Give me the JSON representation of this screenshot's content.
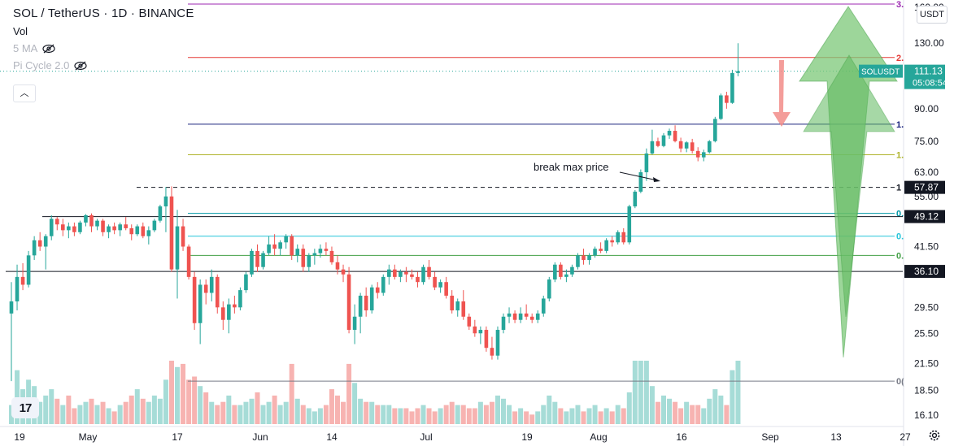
{
  "header": {
    "title": "SOL / TetherUS · 1D · BINANCE",
    "vol_label": "Vol",
    "indicator_1": "5 MA",
    "indicator_2": "Pi Cycle 2.0",
    "currency": "USDT"
  },
  "icons": {
    "eye_hidden": "eye-slash-icon",
    "collapse": "chevron-up-icon",
    "logo": "tradingview-logo-icon",
    "settings": "gear-icon"
  },
  "colors": {
    "up": "#26a69a",
    "down": "#ef5350",
    "vol_up": "#a6dcd7",
    "vol_down": "#f7b3b1",
    "arrow_green": "#6cc36a",
    "arrow_red": "#f28c88"
  },
  "chart_data": {
    "type": "candlestick",
    "symbol": "SOL / TetherUS",
    "interval": "1D",
    "exchange": "BINANCE",
    "y_scale": "log",
    "y_range": [
      15.6,
      162
    ],
    "y_ticks": [
      "160.00",
      "130.00",
      "111.13",
      "90.00",
      "75.00",
      "63.00",
      "57.87",
      "55.00",
      "49.12",
      "41.50",
      "36.10",
      "29.50",
      "25.50",
      "21.50",
      "18.50",
      "16.10"
    ],
    "x_ticks": [
      "19",
      "May",
      "17",
      "Jun",
      "14",
      "Jul",
      "19",
      "Aug",
      "16",
      "Sep",
      "13",
      "27"
    ],
    "price_label": {
      "name": "SOLUSDT",
      "price": "111.13",
      "countdown": "05:08:54"
    },
    "level_labels": [
      {
        "value": 57.87,
        "text": "57.87"
      },
      {
        "value": 49.12,
        "text": "49.12"
      },
      {
        "value": 36.1,
        "text": "36.10"
      }
    ],
    "fib_levels": [
      {
        "label": "3.",
        "value": 162,
        "color": "#9c27b0"
      },
      {
        "label": "2.",
        "value": 120,
        "color": "#e53935"
      },
      {
        "label": "1.",
        "value": 82.5,
        "color": "#1a237e"
      },
      {
        "label": "1.",
        "value": 69.5,
        "color": "#afb42b"
      },
      {
        "label": "1",
        "value": 57.87,
        "color": "#131722"
      },
      {
        "label": "0.",
        "value": 50.0,
        "color": "#0097a7"
      },
      {
        "label": "0.",
        "value": 44.0,
        "color": "#26c6da"
      },
      {
        "label": "0.",
        "value": 39.5,
        "color": "#43a047"
      },
      {
        "label": "0(",
        "value": 19.5,
        "color": "#787b86"
      }
    ],
    "annotation": "break max price",
    "candles_ohlc": [
      [
        28.5,
        34.0,
        19.5,
        30.5
      ],
      [
        30.5,
        37.5,
        29.0,
        35.0
      ],
      [
        35.0,
        37.8,
        32.5,
        33.5
      ],
      [
        33.5,
        40.5,
        33.0,
        39.5
      ],
      [
        39.5,
        44.0,
        38.5,
        43.0
      ],
      [
        43.0,
        45.0,
        40.5,
        41.5
      ],
      [
        41.5,
        44.5,
        36.5,
        44.0
      ],
      [
        44.0,
        49.5,
        43.0,
        48.5
      ],
      [
        48.5,
        49.0,
        45.5,
        47.0
      ],
      [
        47.0,
        48.5,
        44.0,
        45.5
      ],
      [
        45.5,
        47.5,
        43.5,
        46.5
      ],
      [
        46.5,
        47.5,
        44.0,
        45.0
      ],
      [
        45.0,
        48.0,
        44.5,
        47.5
      ],
      [
        47.5,
        49.8,
        46.5,
        49.5
      ],
      [
        49.5,
        50.0,
        45.0,
        46.5
      ],
      [
        46.5,
        48.5,
        45.5,
        48.0
      ],
      [
        48.0,
        48.5,
        44.0,
        45.0
      ],
      [
        45.0,
        47.0,
        43.5,
        46.5
      ],
      [
        46.5,
        47.5,
        44.5,
        45.5
      ],
      [
        45.5,
        47.5,
        44.0,
        47.0
      ],
      [
        47.0,
        49.0,
        45.5,
        46.0
      ],
      [
        46.0,
        47.0,
        43.0,
        44.5
      ],
      [
        44.5,
        47.0,
        44.0,
        46.5
      ],
      [
        46.5,
        47.5,
        43.5,
        44.0
      ],
      [
        44.0,
        46.5,
        42.0,
        45.5
      ],
      [
        45.5,
        48.5,
        45.0,
        48.0
      ],
      [
        48.0,
        52.5,
        47.5,
        52.0
      ],
      [
        52.0,
        58.0,
        45.0,
        55.0
      ],
      [
        55.0,
        58.2,
        36.0,
        36.5
      ],
      [
        36.5,
        51.0,
        31.0,
        46.5
      ],
      [
        46.5,
        48.5,
        40.5,
        41.5
      ],
      [
        41.5,
        42.0,
        34.5,
        35.0
      ],
      [
        35.0,
        36.0,
        26.0,
        27.0
      ],
      [
        27.0,
        34.5,
        24.0,
        33.5
      ],
      [
        33.5,
        34.5,
        30.0,
        32.0
      ],
      [
        32.0,
        36.5,
        30.5,
        35.0
      ],
      [
        35.0,
        35.5,
        28.5,
        29.5
      ],
      [
        29.5,
        30.5,
        26.0,
        27.5
      ],
      [
        27.5,
        31.0,
        25.5,
        30.0
      ],
      [
        30.0,
        31.5,
        28.5,
        29.5
      ],
      [
        29.5,
        33.0,
        29.0,
        32.5
      ],
      [
        32.5,
        36.0,
        32.0,
        35.5
      ],
      [
        35.5,
        41.0,
        35.0,
        40.5
      ],
      [
        40.5,
        42.0,
        36.0,
        37.0
      ],
      [
        37.0,
        40.5,
        36.5,
        40.0
      ],
      [
        40.0,
        44.0,
        39.5,
        42.0
      ],
      [
        42.0,
        44.5,
        39.5,
        41.0
      ],
      [
        41.0,
        43.0,
        39.5,
        42.5
      ],
      [
        42.5,
        44.5,
        41.0,
        44.0
      ],
      [
        44.0,
        44.5,
        38.5,
        39.5
      ],
      [
        39.5,
        42.0,
        38.0,
        41.0
      ],
      [
        41.0,
        42.0,
        36.0,
        37.0
      ],
      [
        37.0,
        40.0,
        36.0,
        39.5
      ],
      [
        39.5,
        41.0,
        37.5,
        40.0
      ],
      [
        40.0,
        42.0,
        39.0,
        41.0
      ],
      [
        41.0,
        42.5,
        39.5,
        40.5
      ],
      [
        40.5,
        41.5,
        37.5,
        38.0
      ],
      [
        38.0,
        39.5,
        35.5,
        36.5
      ],
      [
        36.5,
        37.5,
        34.0,
        35.5
      ],
      [
        35.5,
        37.0,
        25.5,
        26.0
      ],
      [
        26.0,
        30.0,
        24.0,
        28.0
      ],
      [
        28.0,
        32.0,
        25.5,
        31.5
      ],
      [
        31.5,
        33.0,
        28.0,
        29.0
      ],
      [
        29.0,
        33.5,
        28.5,
        33.0
      ],
      [
        33.0,
        34.0,
        31.0,
        32.0
      ],
      [
        32.0,
        35.5,
        31.5,
        35.0
      ],
      [
        35.0,
        37.5,
        33.5,
        36.5
      ],
      [
        36.5,
        37.5,
        34.5,
        35.0
      ],
      [
        35.0,
        36.5,
        34.0,
        36.0
      ],
      [
        36.0,
        37.0,
        34.0,
        35.5
      ],
      [
        35.5,
        36.5,
        34.5,
        35.0
      ],
      [
        35.0,
        36.0,
        33.0,
        34.0
      ],
      [
        34.0,
        37.5,
        33.5,
        37.0
      ],
      [
        37.0,
        38.5,
        34.5,
        35.0
      ],
      [
        35.0,
        36.0,
        32.5,
        33.0
      ],
      [
        33.0,
        34.5,
        32.0,
        34.0
      ],
      [
        34.0,
        35.0,
        31.0,
        31.5
      ],
      [
        31.5,
        32.5,
        28.5,
        29.0
      ],
      [
        29.0,
        31.0,
        28.0,
        30.5
      ],
      [
        30.5,
        32.5,
        27.5,
        28.0
      ],
      [
        28.0,
        28.5,
        26.0,
        26.5
      ],
      [
        26.5,
        27.5,
        25.0,
        25.5
      ],
      [
        25.5,
        26.5,
        24.0,
        26.0
      ],
      [
        26.0,
        26.5,
        23.0,
        23.5
      ],
      [
        23.5,
        25.0,
        22.0,
        22.5
      ],
      [
        22.5,
        26.5,
        22.0,
        26.0
      ],
      [
        26.0,
        28.5,
        25.5,
        28.0
      ],
      [
        28.0,
        29.5,
        27.0,
        28.5
      ],
      [
        28.5,
        29.0,
        27.0,
        27.5
      ],
      [
        27.5,
        29.5,
        27.0,
        28.5
      ],
      [
        28.5,
        30.0,
        27.5,
        28.0
      ],
      [
        28.0,
        28.5,
        27.0,
        27.5
      ],
      [
        27.5,
        29.0,
        27.0,
        28.5
      ],
      [
        28.5,
        31.5,
        28.0,
        31.0
      ],
      [
        31.0,
        35.0,
        30.5,
        34.5
      ],
      [
        34.5,
        38.0,
        34.0,
        37.5
      ],
      [
        37.5,
        38.0,
        34.5,
        35.0
      ],
      [
        35.0,
        36.5,
        34.0,
        35.5
      ],
      [
        35.5,
        37.5,
        35.0,
        37.0
      ],
      [
        37.0,
        40.0,
        36.5,
        39.5
      ],
      [
        39.5,
        41.0,
        37.5,
        38.5
      ],
      [
        38.5,
        40.0,
        37.5,
        39.5
      ],
      [
        39.5,
        41.5,
        39.0,
        41.0
      ],
      [
        41.0,
        42.5,
        40.0,
        40.5
      ],
      [
        40.5,
        43.5,
        40.0,
        43.0
      ],
      [
        43.0,
        44.0,
        41.5,
        42.5
      ],
      [
        42.5,
        45.5,
        42.0,
        45.0
      ],
      [
        45.0,
        46.0,
        42.0,
        42.5
      ],
      [
        42.5,
        52.5,
        42.0,
        52.0
      ],
      [
        52.0,
        57.0,
        51.5,
        56.5
      ],
      [
        56.5,
        64.0,
        56.0,
        63.0
      ],
      [
        63.0,
        72.0,
        60.0,
        70.0
      ],
      [
        70.0,
        80.0,
        69.5,
        75.0
      ],
      [
        75.0,
        76.5,
        72.5,
        73.0
      ],
      [
        73.0,
        78.5,
        72.5,
        77.5
      ],
      [
        77.5,
        80.5,
        76.0,
        79.5
      ],
      [
        79.5,
        82.0,
        74.5,
        75.0
      ],
      [
        75.0,
        76.5,
        70.5,
        72.0
      ],
      [
        72.0,
        75.0,
        70.5,
        74.5
      ],
      [
        74.5,
        76.0,
        70.0,
        71.0
      ],
      [
        71.0,
        72.5,
        67.0,
        68.5
      ],
      [
        68.5,
        71.5,
        67.0,
        70.5
      ],
      [
        70.5,
        75.5,
        70.0,
        75.0
      ],
      [
        75.0,
        86.0,
        74.5,
        85.0
      ],
      [
        85.0,
        98.0,
        84.5,
        97.0
      ],
      [
        97.0,
        99.0,
        90.0,
        93.0
      ],
      [
        93.0,
        112.0,
        92.5,
        110.0
      ],
      [
        110.0,
        130.0,
        108.0,
        111.13
      ]
    ],
    "volumes": [
      [
        0.3,
        1
      ],
      [
        0.85,
        1
      ],
      [
        0.55,
        1
      ],
      [
        0.7,
        1
      ],
      [
        0.6,
        1
      ],
      [
        0.35,
        1
      ],
      [
        0.45,
        1
      ],
      [
        0.55,
        1
      ],
      [
        0.4,
        0
      ],
      [
        0.3,
        1
      ],
      [
        0.45,
        0
      ],
      [
        0.25,
        0
      ],
      [
        0.3,
        1
      ],
      [
        0.35,
        1
      ],
      [
        0.4,
        0
      ],
      [
        0.3,
        1
      ],
      [
        0.35,
        0
      ],
      [
        0.25,
        1
      ],
      [
        0.2,
        0
      ],
      [
        0.3,
        1
      ],
      [
        0.35,
        0
      ],
      [
        0.45,
        0
      ],
      [
        0.55,
        1
      ],
      [
        0.4,
        0
      ],
      [
        0.35,
        1
      ],
      [
        0.45,
        1
      ],
      [
        0.4,
        1
      ],
      [
        0.7,
        1
      ],
      [
        1.0,
        0
      ],
      [
        0.9,
        1
      ],
      [
        0.95,
        0
      ],
      [
        0.7,
        0
      ],
      [
        0.75,
        0
      ],
      [
        0.6,
        1
      ],
      [
        0.5,
        0
      ],
      [
        0.35,
        1
      ],
      [
        0.3,
        0
      ],
      [
        0.35,
        0
      ],
      [
        0.45,
        1
      ],
      [
        0.3,
        0
      ],
      [
        0.3,
        1
      ],
      [
        0.35,
        1
      ],
      [
        0.4,
        1
      ],
      [
        0.5,
        0
      ],
      [
        0.3,
        1
      ],
      [
        0.35,
        1
      ],
      [
        0.45,
        0
      ],
      [
        0.3,
        1
      ],
      [
        0.35,
        1
      ],
      [
        0.95,
        0
      ],
      [
        0.4,
        1
      ],
      [
        0.3,
        0
      ],
      [
        0.25,
        1
      ],
      [
        0.2,
        1
      ],
      [
        0.25,
        1
      ],
      [
        0.3,
        0
      ],
      [
        0.55,
        0
      ],
      [
        0.45,
        0
      ],
      [
        0.35,
        0
      ],
      [
        0.95,
        0
      ],
      [
        0.65,
        1
      ],
      [
        0.4,
        1
      ],
      [
        0.35,
        0
      ],
      [
        0.35,
        1
      ],
      [
        0.3,
        0
      ],
      [
        0.3,
        1
      ],
      [
        0.3,
        1
      ],
      [
        0.25,
        0
      ],
      [
        0.25,
        1
      ],
      [
        0.25,
        0
      ],
      [
        0.2,
        0
      ],
      [
        0.25,
        0
      ],
      [
        0.3,
        1
      ],
      [
        0.25,
        0
      ],
      [
        0.2,
        0
      ],
      [
        0.25,
        1
      ],
      [
        0.3,
        0
      ],
      [
        0.35,
        0
      ],
      [
        0.3,
        1
      ],
      [
        0.3,
        0
      ],
      [
        0.25,
        0
      ],
      [
        0.25,
        0
      ],
      [
        0.35,
        1
      ],
      [
        0.3,
        0
      ],
      [
        0.35,
        0
      ],
      [
        0.45,
        1
      ],
      [
        0.4,
        1
      ],
      [
        0.3,
        1
      ],
      [
        0.2,
        0
      ],
      [
        0.25,
        1
      ],
      [
        0.2,
        0
      ],
      [
        0.15,
        0
      ],
      [
        0.2,
        1
      ],
      [
        0.3,
        1
      ],
      [
        0.45,
        1
      ],
      [
        0.35,
        1
      ],
      [
        0.25,
        0
      ],
      [
        0.2,
        1
      ],
      [
        0.25,
        1
      ],
      [
        0.3,
        1
      ],
      [
        0.2,
        0
      ],
      [
        0.25,
        1
      ],
      [
        0.3,
        1
      ],
      [
        0.2,
        0
      ],
      [
        0.25,
        1
      ],
      [
        0.2,
        0
      ],
      [
        0.3,
        1
      ],
      [
        0.25,
        0
      ],
      [
        0.5,
        1
      ],
      [
        1.0,
        1
      ],
      [
        1.0,
        1
      ],
      [
        1.0,
        1
      ],
      [
        0.6,
        1
      ],
      [
        0.35,
        0
      ],
      [
        0.45,
        1
      ],
      [
        0.4,
        1
      ],
      [
        0.35,
        0
      ],
      [
        0.25,
        0
      ],
      [
        0.35,
        1
      ],
      [
        0.3,
        0
      ],
      [
        0.3,
        0
      ],
      [
        0.25,
        1
      ],
      [
        0.4,
        1
      ],
      [
        0.55,
        1
      ],
      [
        0.45,
        1
      ],
      [
        0.3,
        0
      ],
      [
        0.85,
        1
      ],
      [
        1.0,
        1
      ]
    ]
  }
}
